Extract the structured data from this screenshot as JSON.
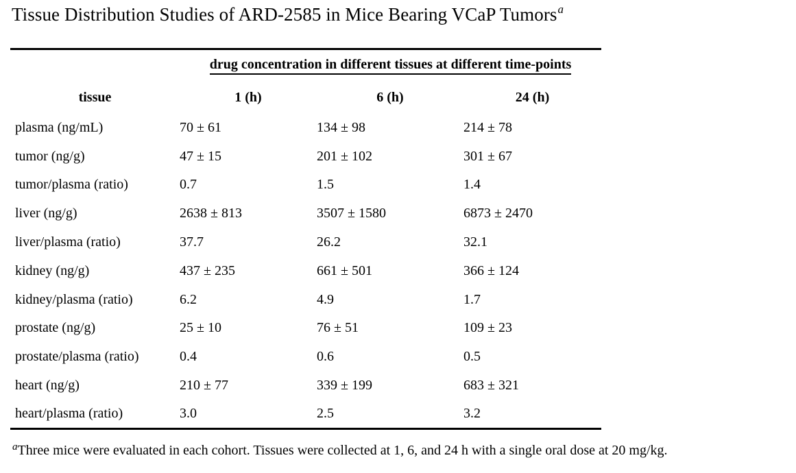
{
  "page": {
    "title": "Tissue Distribution Studies of ARD-2585 in Mice Bearing VCaP Tumors",
    "title_footnote_marker": "a"
  },
  "table": {
    "spanning_header": "drug concentration in different tissues at different time-points",
    "columns": [
      "tissue",
      "1 (h)",
      "6 (h)",
      "24 (h)"
    ],
    "rows": [
      {
        "tissue": "plasma (ng/mL)",
        "t1h": "70 ± 61",
        "t6h": "134 ± 98",
        "t24h": "214 ± 78"
      },
      {
        "tissue": "tumor (ng/g)",
        "t1h": "47 ± 15",
        "t6h": "201 ± 102",
        "t24h": "301 ± 67"
      },
      {
        "tissue": "tumor/plasma (ratio)",
        "t1h": "0.7",
        "t6h": "1.5",
        "t24h": "1.4"
      },
      {
        "tissue": "liver (ng/g)",
        "t1h": "2638 ± 813",
        "t6h": "3507 ± 1580",
        "t24h": "6873 ± 2470"
      },
      {
        "tissue": "liver/plasma (ratio)",
        "t1h": "37.7",
        "t6h": "26.2",
        "t24h": "32.1"
      },
      {
        "tissue": "kidney (ng/g)",
        "t1h": "437 ± 235",
        "t6h": "661 ± 501",
        "t24h": "366 ± 124"
      },
      {
        "tissue": "kidney/plasma (ratio)",
        "t1h": "6.2",
        "t6h": "4.9",
        "t24h": "1.7"
      },
      {
        "tissue": "prostate (ng/g)",
        "t1h": "25 ± 10",
        "t6h": "76 ± 51",
        "t24h": "109 ± 23"
      },
      {
        "tissue": "prostate/plasma (ratio)",
        "t1h": "0.4",
        "t6h": "0.6",
        "t24h": "0.5"
      },
      {
        "tissue": "heart (ng/g)",
        "t1h": "210 ± 77",
        "t6h": "339 ± 199",
        "t24h": "683 ± 321"
      },
      {
        "tissue": "heart/plasma (ratio)",
        "t1h": "3.0",
        "t6h": "2.5",
        "t24h": "3.2"
      }
    ]
  },
  "footnote": {
    "marker": "a",
    "text": "Three mice were evaluated in each cohort. Tissues were collected at 1, 6, and 24 h with a single oral dose at 20 mg/kg."
  },
  "colors": {
    "text": "#000000",
    "rule": "#000000",
    "background": "#ffffff"
  }
}
